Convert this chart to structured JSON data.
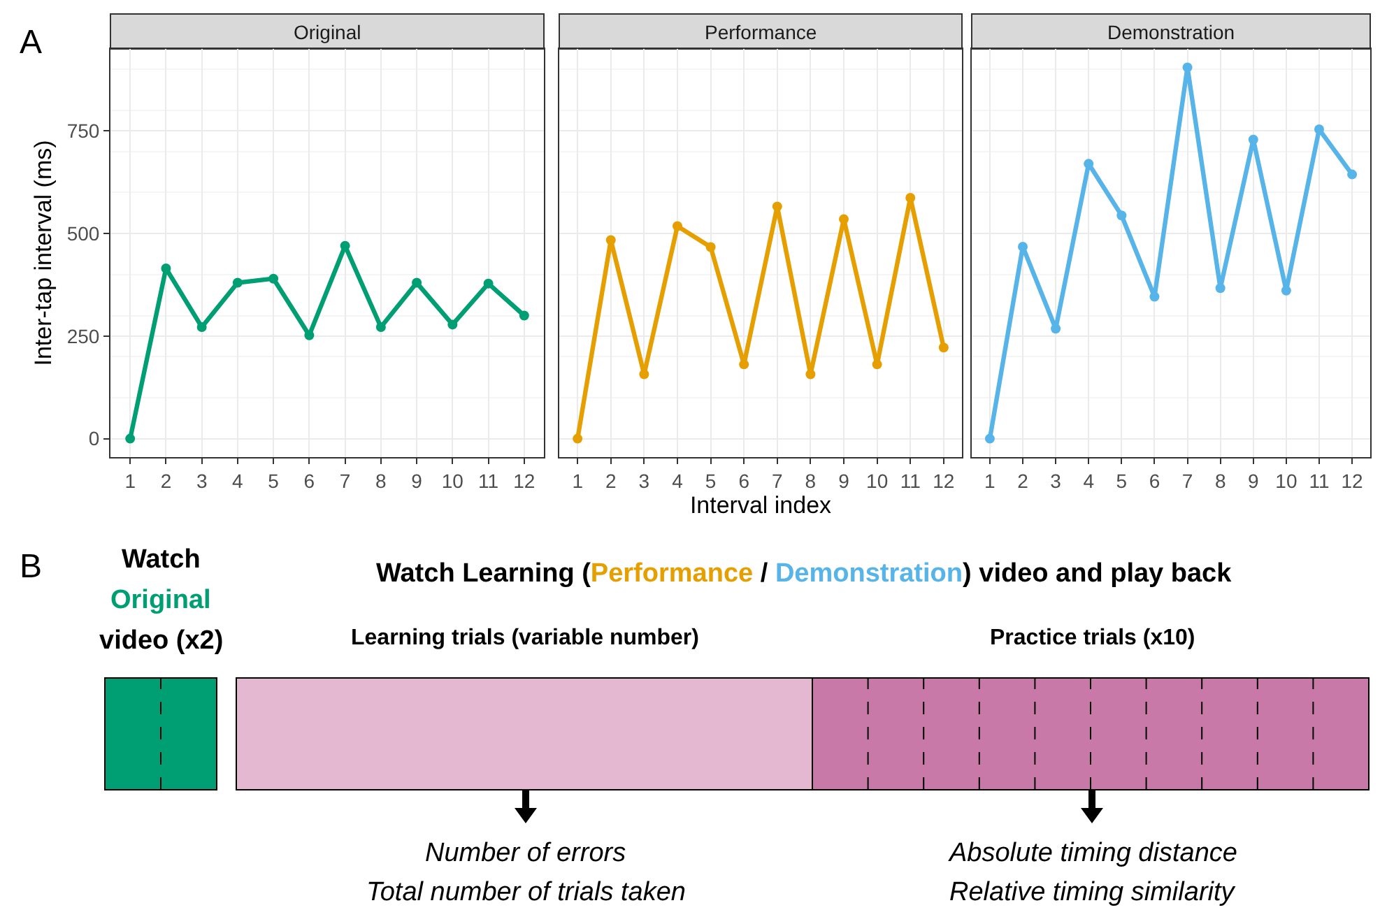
{
  "chart_data": [
    {
      "type": "line",
      "title": "Original",
      "ylabel": "Inter-tap interval (ms)",
      "annotations": [
        "A"
      ],
      "x": [
        1,
        2,
        3,
        4,
        5,
        6,
        7,
        8,
        9,
        10,
        11,
        12
      ],
      "xlim": [
        0.45,
        12.55
      ],
      "xticks": [
        1,
        2,
        3,
        4,
        5,
        6,
        7,
        8,
        9,
        10,
        11,
        12
      ],
      "ylim": [
        -45,
        950
      ],
      "yticks": [
        0,
        250,
        500,
        750
      ],
      "grid": true,
      "marker": "circle",
      "line_style": "solid",
      "series": [
        {
          "color": "#009e73",
          "values": [
            0,
            415,
            272,
            380,
            390,
            252,
            470,
            272,
            380,
            278,
            378,
            300
          ]
        }
      ]
    },
    {
      "type": "line",
      "title": "Performance",
      "xlabel": "Interval index",
      "x": [
        1,
        2,
        3,
        4,
        5,
        6,
        7,
        8,
        9,
        10,
        11,
        12
      ],
      "xlim": [
        0.45,
        12.55
      ],
      "xticks": [
        1,
        2,
        3,
        4,
        5,
        6,
        7,
        8,
        9,
        10,
        11,
        12
      ],
      "ylim": [
        -45,
        950
      ],
      "yticks": [
        0,
        250,
        500,
        750
      ],
      "tick_labels": "x",
      "grid": true,
      "marker": "circle",
      "line_style": "solid",
      "series": [
        {
          "color": "#e69f00",
          "values": [
            0,
            484,
            157,
            518,
            467,
            181,
            566,
            157,
            535,
            181,
            587,
            222
          ]
        }
      ]
    },
    {
      "type": "line",
      "title": "Demonstration",
      "x": [
        1,
        2,
        3,
        4,
        5,
        6,
        7,
        8,
        9,
        10,
        11,
        12
      ],
      "xlim": [
        0.45,
        12.55
      ],
      "xticks": [
        1,
        2,
        3,
        4,
        5,
        6,
        7,
        8,
        9,
        10,
        11,
        12
      ],
      "ylim": [
        -45,
        950
      ],
      "yticks": [
        0,
        250,
        500,
        750
      ],
      "tick_labels": "x",
      "grid": true,
      "marker": "circle",
      "line_style": "solid",
      "series": [
        {
          "color": "#56b4e9",
          "values": [
            0,
            468,
            268,
            670,
            544,
            346,
            905,
            367,
            729,
            361,
            754,
            644
          ]
        }
      ]
    },
    {
      "type": "other",
      "annotations": [
        "B",
        "Watch",
        "Original",
        "video (x2)",
        "Watch Learning (",
        "Performance",
        " / ",
        "Demonstration",
        ") video and play back",
        "Learning trials (variable number)",
        "Practice trials (x10)",
        "Number of errors",
        "Total number of trials taken",
        "Absolute timing distance",
        "Relative timing similarity"
      ]
    }
  ]
}
